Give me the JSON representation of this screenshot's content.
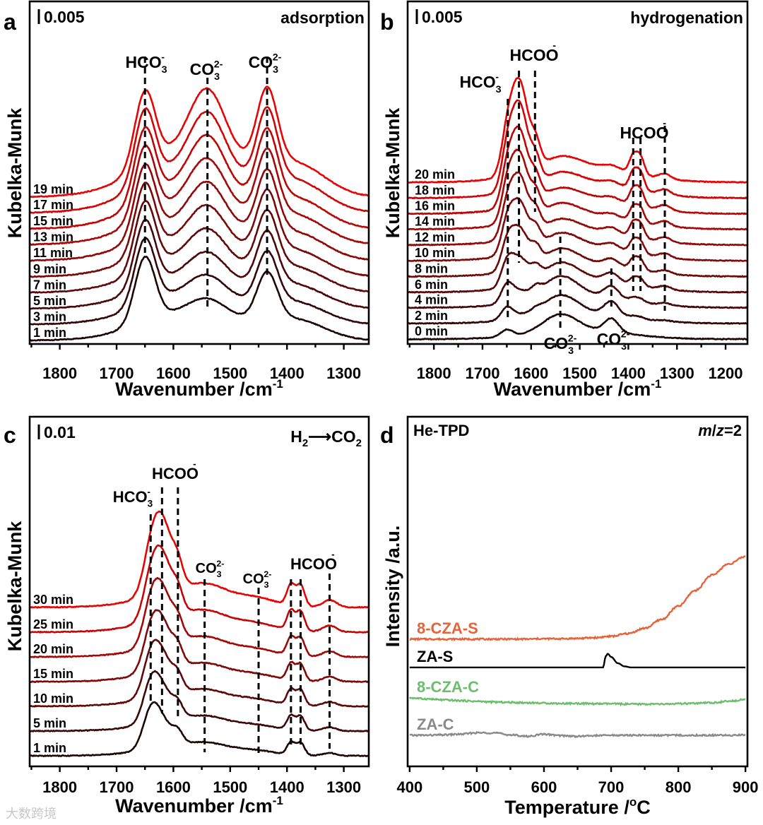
{
  "watermark": "大数跨境",
  "chart_data": [
    {
      "type": "line",
      "panel_letter": "a",
      "condition_label": "adsorption",
      "scale_bar": "0.005",
      "xlabel": {
        "text": "Wavenumber /cm",
        "sup": "-1"
      },
      "ylabel": "Kubelka-Munk",
      "xlim": [
        1853,
        1256
      ],
      "ylim": [
        0,
        100
      ],
      "xticks": [
        1800,
        1700,
        1600,
        1500,
        1400,
        1300
      ],
      "components": [
        {
          "center": 1650,
          "width": 18
        },
        {
          "center": 1540,
          "width": 30
        },
        {
          "center": 1435,
          "width": 18
        },
        {
          "center": 1560,
          "width": 90
        },
        {
          "center": 1380,
          "width": 50
        }
      ],
      "series": [
        {
          "name": "1 min",
          "color": "#1c0606",
          "offset": 1.0,
          "amplitudes": [
            19,
            3.5,
            14,
            9,
            5
          ]
        },
        {
          "name": "3 min",
          "color": "#330707",
          "offset": 5.7,
          "amplitudes": [
            19.3,
            5,
            14.9,
            9.7,
            5.3
          ]
        },
        {
          "name": "5 min",
          "color": "#4a0808",
          "offset": 10.3,
          "amplitudes": [
            19.7,
            6.5,
            15.8,
            10.3,
            5.7
          ]
        },
        {
          "name": "7 min",
          "color": "#610909",
          "offset": 15.0,
          "amplitudes": [
            20,
            8,
            16.7,
            11,
            6
          ]
        },
        {
          "name": "9 min",
          "color": "#780909",
          "offset": 19.6,
          "amplitudes": [
            20.3,
            9.5,
            17.6,
            11.7,
            6.3
          ]
        },
        {
          "name": "11 min",
          "color": "#8f0909",
          "offset": 24.3,
          "amplitudes": [
            20.7,
            11,
            18.4,
            12.3,
            6.7
          ]
        },
        {
          "name": "13 min",
          "color": "#a50808",
          "offset": 29.0,
          "amplitudes": [
            21,
            12.5,
            19.3,
            13,
            7
          ]
        },
        {
          "name": "15 min",
          "color": "#bc0707",
          "offset": 33.6,
          "amplitudes": [
            21.3,
            14,
            20.2,
            13.7,
            7.3
          ]
        },
        {
          "name": "17 min",
          "color": "#d20505",
          "offset": 38.3,
          "amplitudes": [
            21.7,
            15.5,
            21.1,
            14.3,
            7.7
          ]
        },
        {
          "name": "19 min",
          "color": "#e80404",
          "offset": 42.9,
          "amplitudes": [
            22,
            17,
            22,
            15,
            8
          ]
        }
      ],
      "annotations": {
        "lines": [
          1650,
          1540,
          1435
        ],
        "labels": [
          {
            "base": "HCO",
            "sub": "3",
            "sup": "-"
          },
          {
            "base": "CO",
            "sub": "3",
            "sup": "2-"
          },
          {
            "base": "CO",
            "sub": "3",
            "sup": "2-"
          }
        ]
      }
    },
    {
      "type": "line",
      "panel_letter": "b",
      "condition_label": "hydrogenation",
      "scale_bar": "0.005",
      "xlabel": {
        "text": "Wavenumber /cm",
        "sup": "-1"
      },
      "ylabel": "Kubelka-Munk",
      "xlim": [
        1854,
        1155
      ],
      "ylim": [
        0,
        100
      ],
      "xticks": [
        1800,
        1700,
        1600,
        1500,
        1400,
        1300,
        1200
      ],
      "components": [
        {
          "center": 1650,
          "width": 12
        },
        {
          "center": 1625,
          "width": 18
        },
        {
          "center": 1590,
          "width": 10
        },
        {
          "center": 1540,
          "width": 35
        },
        {
          "center": 1435,
          "width": 15
        },
        {
          "center": 1390,
          "width": 8
        },
        {
          "center": 1375,
          "width": 8
        },
        {
          "center": 1325,
          "width": 12
        },
        {
          "center": 1500,
          "width": 100
        }
      ],
      "series": [
        {
          "name": "0 min",
          "color": "#1c0606",
          "offset": 1.4,
          "amplitudes": [
            2,
            0,
            0,
            5,
            4,
            0,
            0,
            0,
            2.5
          ]
        },
        {
          "name": "2 min",
          "color": "#300707",
          "offset": 6.0,
          "amplitudes": [
            3.5,
            1,
            1,
            5.5,
            4,
            0.5,
            0.5,
            0.3,
            3
          ]
        },
        {
          "name": "4 min",
          "color": "#440808",
          "offset": 10.6,
          "amplitudes": [
            5,
            3,
            2,
            6,
            3.5,
            1,
            1,
            0.6,
            3.5
          ]
        },
        {
          "name": "6 min",
          "color": "#580909",
          "offset": 15.1,
          "amplitudes": [
            6,
            8,
            3,
            5,
            2.5,
            2,
            2,
            1,
            4
          ]
        },
        {
          "name": "8 min",
          "color": "#6c0909",
          "offset": 19.7,
          "amplitudes": [
            6.5,
            12,
            4,
            4.5,
            2,
            3,
            3,
            1,
            4
          ]
        },
        {
          "name": "10 min",
          "color": "#800909",
          "offset": 24.3,
          "amplitudes": [
            7,
            15,
            4.5,
            4,
            1.5,
            3.5,
            3.5,
            1.2,
            4.5
          ]
        },
        {
          "name": "12 min",
          "color": "#940808",
          "offset": 28.9,
          "amplitudes": [
            7,
            18,
            5,
            3.5,
            1.5,
            4,
            4,
            1.3,
            4.5
          ]
        },
        {
          "name": "14 min",
          "color": "#a80808",
          "offset": 33.5,
          "amplitudes": [
            7.5,
            20,
            5.5,
            3.5,
            1,
            4,
            4,
            1.4,
            4.5
          ]
        },
        {
          "name": "16 min",
          "color": "#bc0707",
          "offset": 38.0,
          "amplitudes": [
            7.5,
            22,
            5.5,
            3,
            1,
            4.5,
            4.5,
            1.5,
            5
          ]
        },
        {
          "name": "18 min",
          "color": "#d00505",
          "offset": 42.6,
          "amplitudes": [
            8,
            25,
            6,
            3,
            1,
            5,
            5,
            1.5,
            5
          ]
        },
        {
          "name": "20 min",
          "color": "#e60404",
          "offset": 47.2,
          "amplitudes": [
            8,
            27,
            6,
            3,
            1,
            5,
            5,
            1.5,
            5
          ]
        }
      ],
      "annotations": {
        "lines": [
          1648,
          1625,
          1592,
          1540,
          1435,
          1390,
          1375,
          1325
        ],
        "labels": [
          {
            "base": "HCO",
            "sub": "3",
            "sup": "-"
          },
          {
            "base": "HCOO",
            "sub": "",
            "sup": "-"
          },
          {
            "base": "HCOO",
            "sub": "",
            "sup": "-"
          },
          {
            "base": "CO",
            "sub": "3",
            "sup": "2-"
          },
          {
            "base": "CO",
            "sub": "3",
            "sup": "2-"
          }
        ]
      }
    },
    {
      "type": "line",
      "panel_letter": "c",
      "condition_label": {
        "a": "H",
        "a_sub": "2",
        "arrow": "⟶",
        "b": "CO",
        "b_sub": "2"
      },
      "scale_bar": "0.01",
      "xlabel": {
        "text": "Wavenumber /cm",
        "sup": "-1"
      },
      "ylabel": "Kubelka-Munk",
      "xlim": [
        1853,
        1256
      ],
      "ylim": [
        0,
        100
      ],
      "xticks": [
        1800,
        1700,
        1600,
        1500,
        1400,
        1300
      ],
      "components": [
        {
          "center": 1640,
          "width": 14
        },
        {
          "center": 1620,
          "width": 18
        },
        {
          "center": 1592,
          "width": 9
        },
        {
          "center": 1545,
          "width": 30
        },
        {
          "center": 1450,
          "width": 30
        },
        {
          "center": 1393,
          "width": 7
        },
        {
          "center": 1376,
          "width": 7
        },
        {
          "center": 1325,
          "width": 12
        },
        {
          "center": 1560,
          "width": 80
        }
      ],
      "series": [
        {
          "name": "1 min",
          "color": "#1c0606",
          "offset": 3.0,
          "amplitudes": [
            9,
            7,
            3,
            1,
            0.5,
            3.5,
            3.5,
            0.8,
            3
          ]
        },
        {
          "name": "5 min",
          "color": "#3c0808",
          "offset": 10.1,
          "amplitudes": [
            9,
            9,
            3.3,
            1.2,
            0.6,
            4,
            4,
            1,
            3.3
          ]
        },
        {
          "name": "10 min",
          "color": "#5e0909",
          "offset": 17.2,
          "amplitudes": [
            9,
            11,
            3.7,
            1.3,
            0.7,
            4.4,
            4.4,
            1.2,
            3.7
          ]
        },
        {
          "name": "15 min",
          "color": "#800909",
          "offset": 24.2,
          "amplitudes": [
            8.5,
            13,
            4,
            1.5,
            0.8,
            4.8,
            4.8,
            1.4,
            4
          ]
        },
        {
          "name": "20 min",
          "color": "#a20808",
          "offset": 31.3,
          "amplitudes": [
            8.5,
            15,
            4.3,
            1.7,
            0.8,
            5.2,
            5.2,
            1.6,
            4.3
          ]
        },
        {
          "name": "25 min",
          "color": "#c40606",
          "offset": 38.4,
          "amplitudes": [
            8,
            17.5,
            4.7,
            1.8,
            0.9,
            5.6,
            5.6,
            1.8,
            4.7
          ]
        },
        {
          "name": "30 min",
          "color": "#e60404",
          "offset": 45.5,
          "amplitudes": [
            8,
            20,
            5,
            2,
            1,
            6,
            6,
            2,
            5
          ]
        }
      ],
      "annotations": {
        "lines": [
          1640,
          1620,
          1592,
          1545,
          1450,
          1393,
          1376,
          1325
        ],
        "labels": [
          {
            "base": "HCO",
            "sub": "3",
            "sup": "-"
          },
          {
            "base": "HCOO",
            "sub": "",
            "sup": "-"
          },
          {
            "base": "CO",
            "sub": "3",
            "sup": "2-"
          },
          {
            "base": "CO",
            "sub": "3",
            "sup": "2-"
          },
          {
            "base": "HCOO",
            "sub": "",
            "sup": "-"
          }
        ]
      }
    },
    {
      "type": "line",
      "panel_letter": "d",
      "title": "He-TPD",
      "condition_label": {
        "m": "m",
        "slash": "/",
        "z": "z",
        "value": "=2"
      },
      "xlabel": {
        "text": "Temperature /",
        "sup": "o",
        "unit": "C"
      },
      "ylabel": "Intensity /a.u.",
      "xlim": [
        397,
        903
      ],
      "ylim": [
        0,
        100
      ],
      "xticks": [
        400,
        500,
        600,
        700,
        800,
        900
      ],
      "series": [
        {
          "name": "8-CZA-S",
          "color": "#e8623a",
          "x": [
            400,
            425,
            450,
            475,
            500,
            525,
            550,
            575,
            600,
            625,
            650,
            675,
            700,
            725,
            750,
            775,
            800,
            825,
            850,
            875,
            900
          ],
          "y": [
            36.4,
            36.4,
            36.4,
            36.4,
            36.4,
            36.4,
            36.4,
            36.4,
            36.5,
            36.5,
            36.6,
            36.8,
            37.2,
            38.0,
            39.5,
            42.0,
            45.8,
            50.3,
            54.7,
            57.9,
            60.0
          ]
        },
        {
          "name": "ZA-S",
          "color": "#000000",
          "x": [
            400,
            688,
            692,
            695,
            700,
            710,
            720,
            730,
            900
          ],
          "y": [
            28.3,
            28.3,
            31.5,
            32.2,
            31.3,
            29.5,
            28.6,
            28.3,
            28.3
          ]
        },
        {
          "name": "8-CZA-C",
          "color": "#6bbf6b",
          "x": [
            400,
            425,
            450,
            475,
            500,
            525,
            550,
            575,
            600,
            625,
            650,
            675,
            700,
            725,
            750,
            775,
            800,
            825,
            850,
            875,
            900
          ],
          "y": [
            19.6,
            19.3,
            19.0,
            18.8,
            18.6,
            18.4,
            18.3,
            18.2,
            18.1,
            18.0,
            18.0,
            17.9,
            17.9,
            17.8,
            17.8,
            17.8,
            17.9,
            18.0,
            18.2,
            18.6,
            19.2
          ]
        },
        {
          "name": "ZA-C",
          "color": "#8a8a8a",
          "x": [
            400,
            425,
            450,
            475,
            500,
            525,
            550,
            575,
            600,
            625,
            650,
            675,
            700,
            725,
            750,
            775,
            800,
            825,
            850,
            875,
            900
          ],
          "y": [
            8.9,
            8.9,
            9.0,
            9.2,
            9.6,
            9.6,
            9.0,
            8.6,
            9.2,
            8.8,
            8.6,
            8.8,
            8.9,
            8.9,
            8.9,
            8.9,
            8.9,
            8.9,
            8.9,
            8.9,
            9.0
          ]
        }
      ]
    }
  ]
}
